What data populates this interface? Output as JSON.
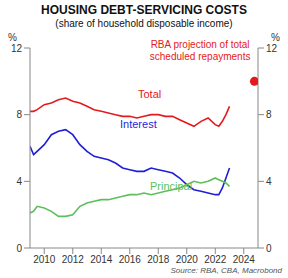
{
  "chart_data": {
    "type": "line",
    "title": "HOUSING DEBT-SERVICING COSTS",
    "subtitle": "(share of household disposable income)",
    "y_label": "%",
    "source": "Source: RBA, CBA, Macrobond",
    "x": [
      2009,
      2009.25,
      2009.5,
      2010,
      2010.5,
      2011,
      2011.5,
      2012,
      2012.5,
      2013,
      2013.5,
      2014,
      2014.5,
      2015,
      2015.5,
      2016,
      2016.5,
      2017,
      2017.5,
      2018,
      2018.5,
      2019,
      2019.5,
      2020,
      2020.5,
      2021,
      2021.5,
      2022,
      2022.25,
      2022.5,
      2022.75,
      2023
    ],
    "xlim": [
      2009,
      2025
    ],
    "xticks": [
      2010,
      2012,
      2014,
      2016,
      2018,
      2020,
      2022,
      2024
    ],
    "ylim": [
      0,
      12
    ],
    "yticks": [
      0,
      4,
      8,
      12
    ],
    "grid": false,
    "series": [
      {
        "name": "Total",
        "color": "#e41a1c",
        "values": [
          8.2,
          8.2,
          8.3,
          8.6,
          8.7,
          8.9,
          9.0,
          8.8,
          8.7,
          8.5,
          8.3,
          8.2,
          8.1,
          8.0,
          7.9,
          7.9,
          7.8,
          7.9,
          8.0,
          8.0,
          7.9,
          7.9,
          7.7,
          7.5,
          7.3,
          7.6,
          7.8,
          7.4,
          7.3,
          7.6,
          8.0,
          8.5
        ]
      },
      {
        "name": "Interest",
        "color": "#1f1fd6",
        "values": [
          6.1,
          5.6,
          5.8,
          6.2,
          6.8,
          7.0,
          7.1,
          6.8,
          6.2,
          5.8,
          5.5,
          5.4,
          5.3,
          5.1,
          4.8,
          4.7,
          4.6,
          4.6,
          4.8,
          4.7,
          4.6,
          4.5,
          4.2,
          3.8,
          3.5,
          3.4,
          3.3,
          3.2,
          3.2,
          3.6,
          4.2,
          4.8
        ]
      },
      {
        "name": "Principal",
        "color": "#5cbf5c",
        "values": [
          2.1,
          2.2,
          2.5,
          2.4,
          2.2,
          1.9,
          1.9,
          2.0,
          2.5,
          2.7,
          2.8,
          2.9,
          2.9,
          3.0,
          3.1,
          3.2,
          3.2,
          3.3,
          3.2,
          3.3,
          3.4,
          3.5,
          3.6,
          3.8,
          4.0,
          3.9,
          4.0,
          4.2,
          4.1,
          4.0,
          3.9,
          3.7
        ]
      }
    ],
    "annotations": [
      {
        "text": [
          "RBA projection of total",
          "scheduled repayments"
        ],
        "x": 2024.75,
        "y": 10,
        "color": "#e41a1c",
        "marker": "circle"
      }
    ]
  }
}
